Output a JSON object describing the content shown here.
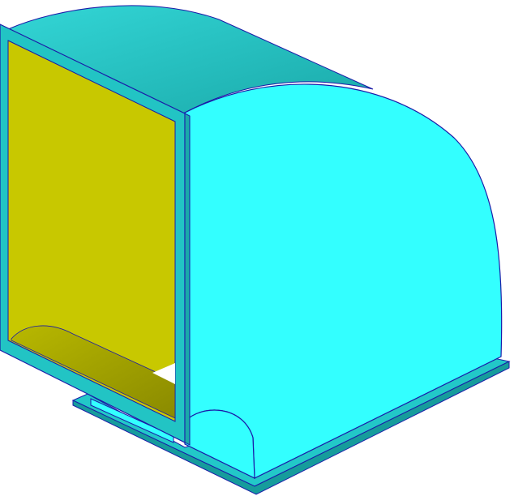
{
  "colors": {
    "background": "#ffffff",
    "outline": "#1a1aa8",
    "front_face": "#33ffff",
    "top_curve_light": "#33d6d6",
    "top_curve_dark": "#1aa9a9",
    "frame": "#22c4c4",
    "frame_edge": "#1aa9a9",
    "opening_interior": "#c8c800",
    "inner_curve": "#a0a000",
    "base_plate": "#22c8c8",
    "base_plate_edge": "#169c9c"
  }
}
